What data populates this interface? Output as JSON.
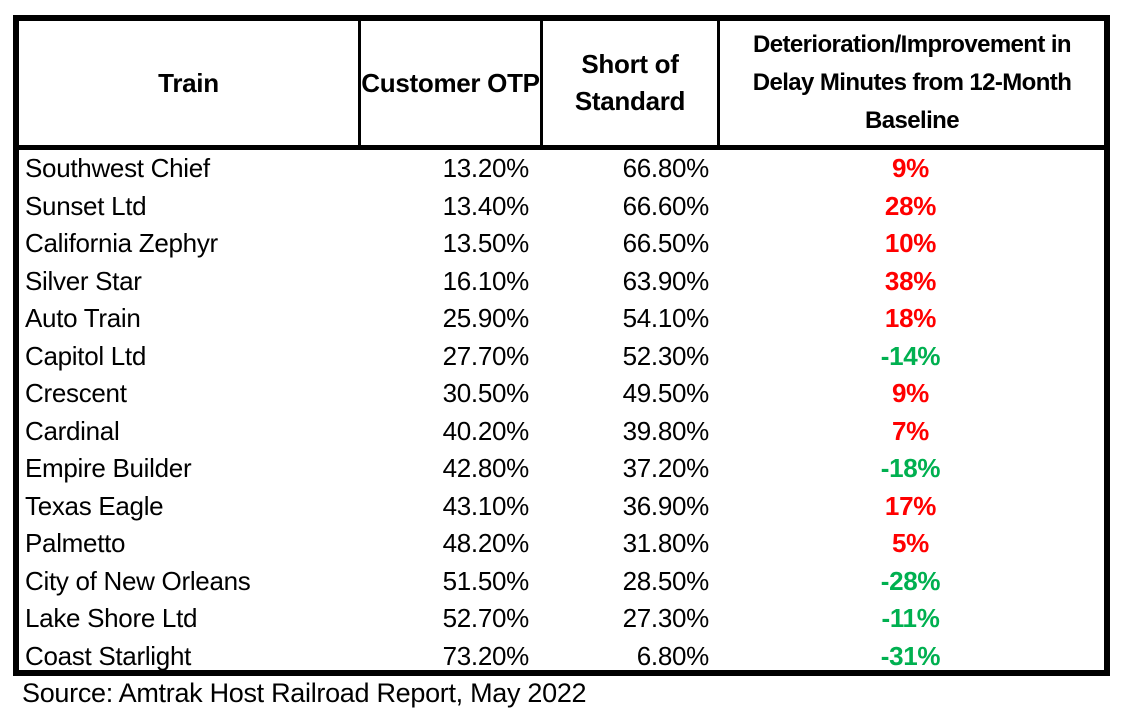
{
  "chart_data": {
    "type": "table",
    "columns": [
      "Train",
      "Customer OTP",
      "Short of Standard",
      "Deterioration/Improvement in Delay Minutes from 12-Month Baseline"
    ],
    "rows": [
      [
        "Southwest Chief",
        "13.20%",
        "66.80%",
        "9%"
      ],
      [
        "Sunset Ltd",
        "13.40%",
        "66.60%",
        "28%"
      ],
      [
        "California Zephyr",
        "13.50%",
        "66.50%",
        "10%"
      ],
      [
        "Silver Star",
        "16.10%",
        "63.90%",
        "38%"
      ],
      [
        "Auto Train",
        "25.90%",
        "54.10%",
        "18%"
      ],
      [
        "Capitol Ltd",
        "27.70%",
        "52.30%",
        "-14%"
      ],
      [
        "Crescent",
        "30.50%",
        "49.50%",
        "9%"
      ],
      [
        "Cardinal",
        "40.20%",
        "39.80%",
        "7%"
      ],
      [
        "Empire Builder",
        "42.80%",
        "37.20%",
        "-18%"
      ],
      [
        "Texas Eagle",
        "43.10%",
        "36.90%",
        "17%"
      ],
      [
        "Palmetto",
        "48.20%",
        "31.80%",
        "5%"
      ],
      [
        "City of New Orleans",
        "51.50%",
        "28.50%",
        "-28%"
      ],
      [
        "Lake Shore Ltd",
        "52.70%",
        "27.30%",
        "-11%"
      ],
      [
        "Coast Starlight",
        "73.20%",
        "6.80%",
        "-31%"
      ]
    ],
    "source": "Source: Amtrak Host Railroad Report, May 2022",
    "colors": {
      "deterioration_positive": "#ff0000",
      "improvement_negative": "#00b050",
      "border": "#000000"
    },
    "legend_note": "positive delay change shown red, negative shown green"
  }
}
